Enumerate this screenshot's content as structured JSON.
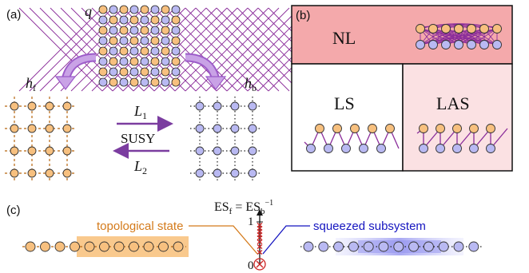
{
  "panels": {
    "a": {
      "label": "(a)"
    },
    "b": {
      "label": "(b)"
    },
    "c": {
      "label": "(c)"
    }
  },
  "panel_a": {
    "q": "q",
    "h_f": "h",
    "h_f_sub": "f",
    "h_b": "h",
    "h_b_sub": "b",
    "L1": "L",
    "L1_sub": "1",
    "L2": "L",
    "L2_sub": "2",
    "susy": "SUSY"
  },
  "panel_b": {
    "nl": "NL",
    "ls": "LS",
    "las": "LAS"
  },
  "panel_c": {
    "es_left": "ES",
    "es_left_sub": "f",
    "es_eq": " = ",
    "es_right": "ES",
    "es_right_sub": "b",
    "es_right_sup": "−1",
    "tick_1": "1",
    "tick_0": "0",
    "topological": "topological state",
    "squeezed": "squeezed subsystem"
  },
  "colors": {
    "fermion": "#f7c07f",
    "boson": "#b9b9f2",
    "purple": "#8a2c9a",
    "arrow": "#7b3da0",
    "nl_bg": "#f4a9ab",
    "las_bg": "#fbe1e3",
    "topo_text": "#d47a1a",
    "topo_bg": "#f9c98d",
    "squeezed_text": "#1515c0"
  }
}
